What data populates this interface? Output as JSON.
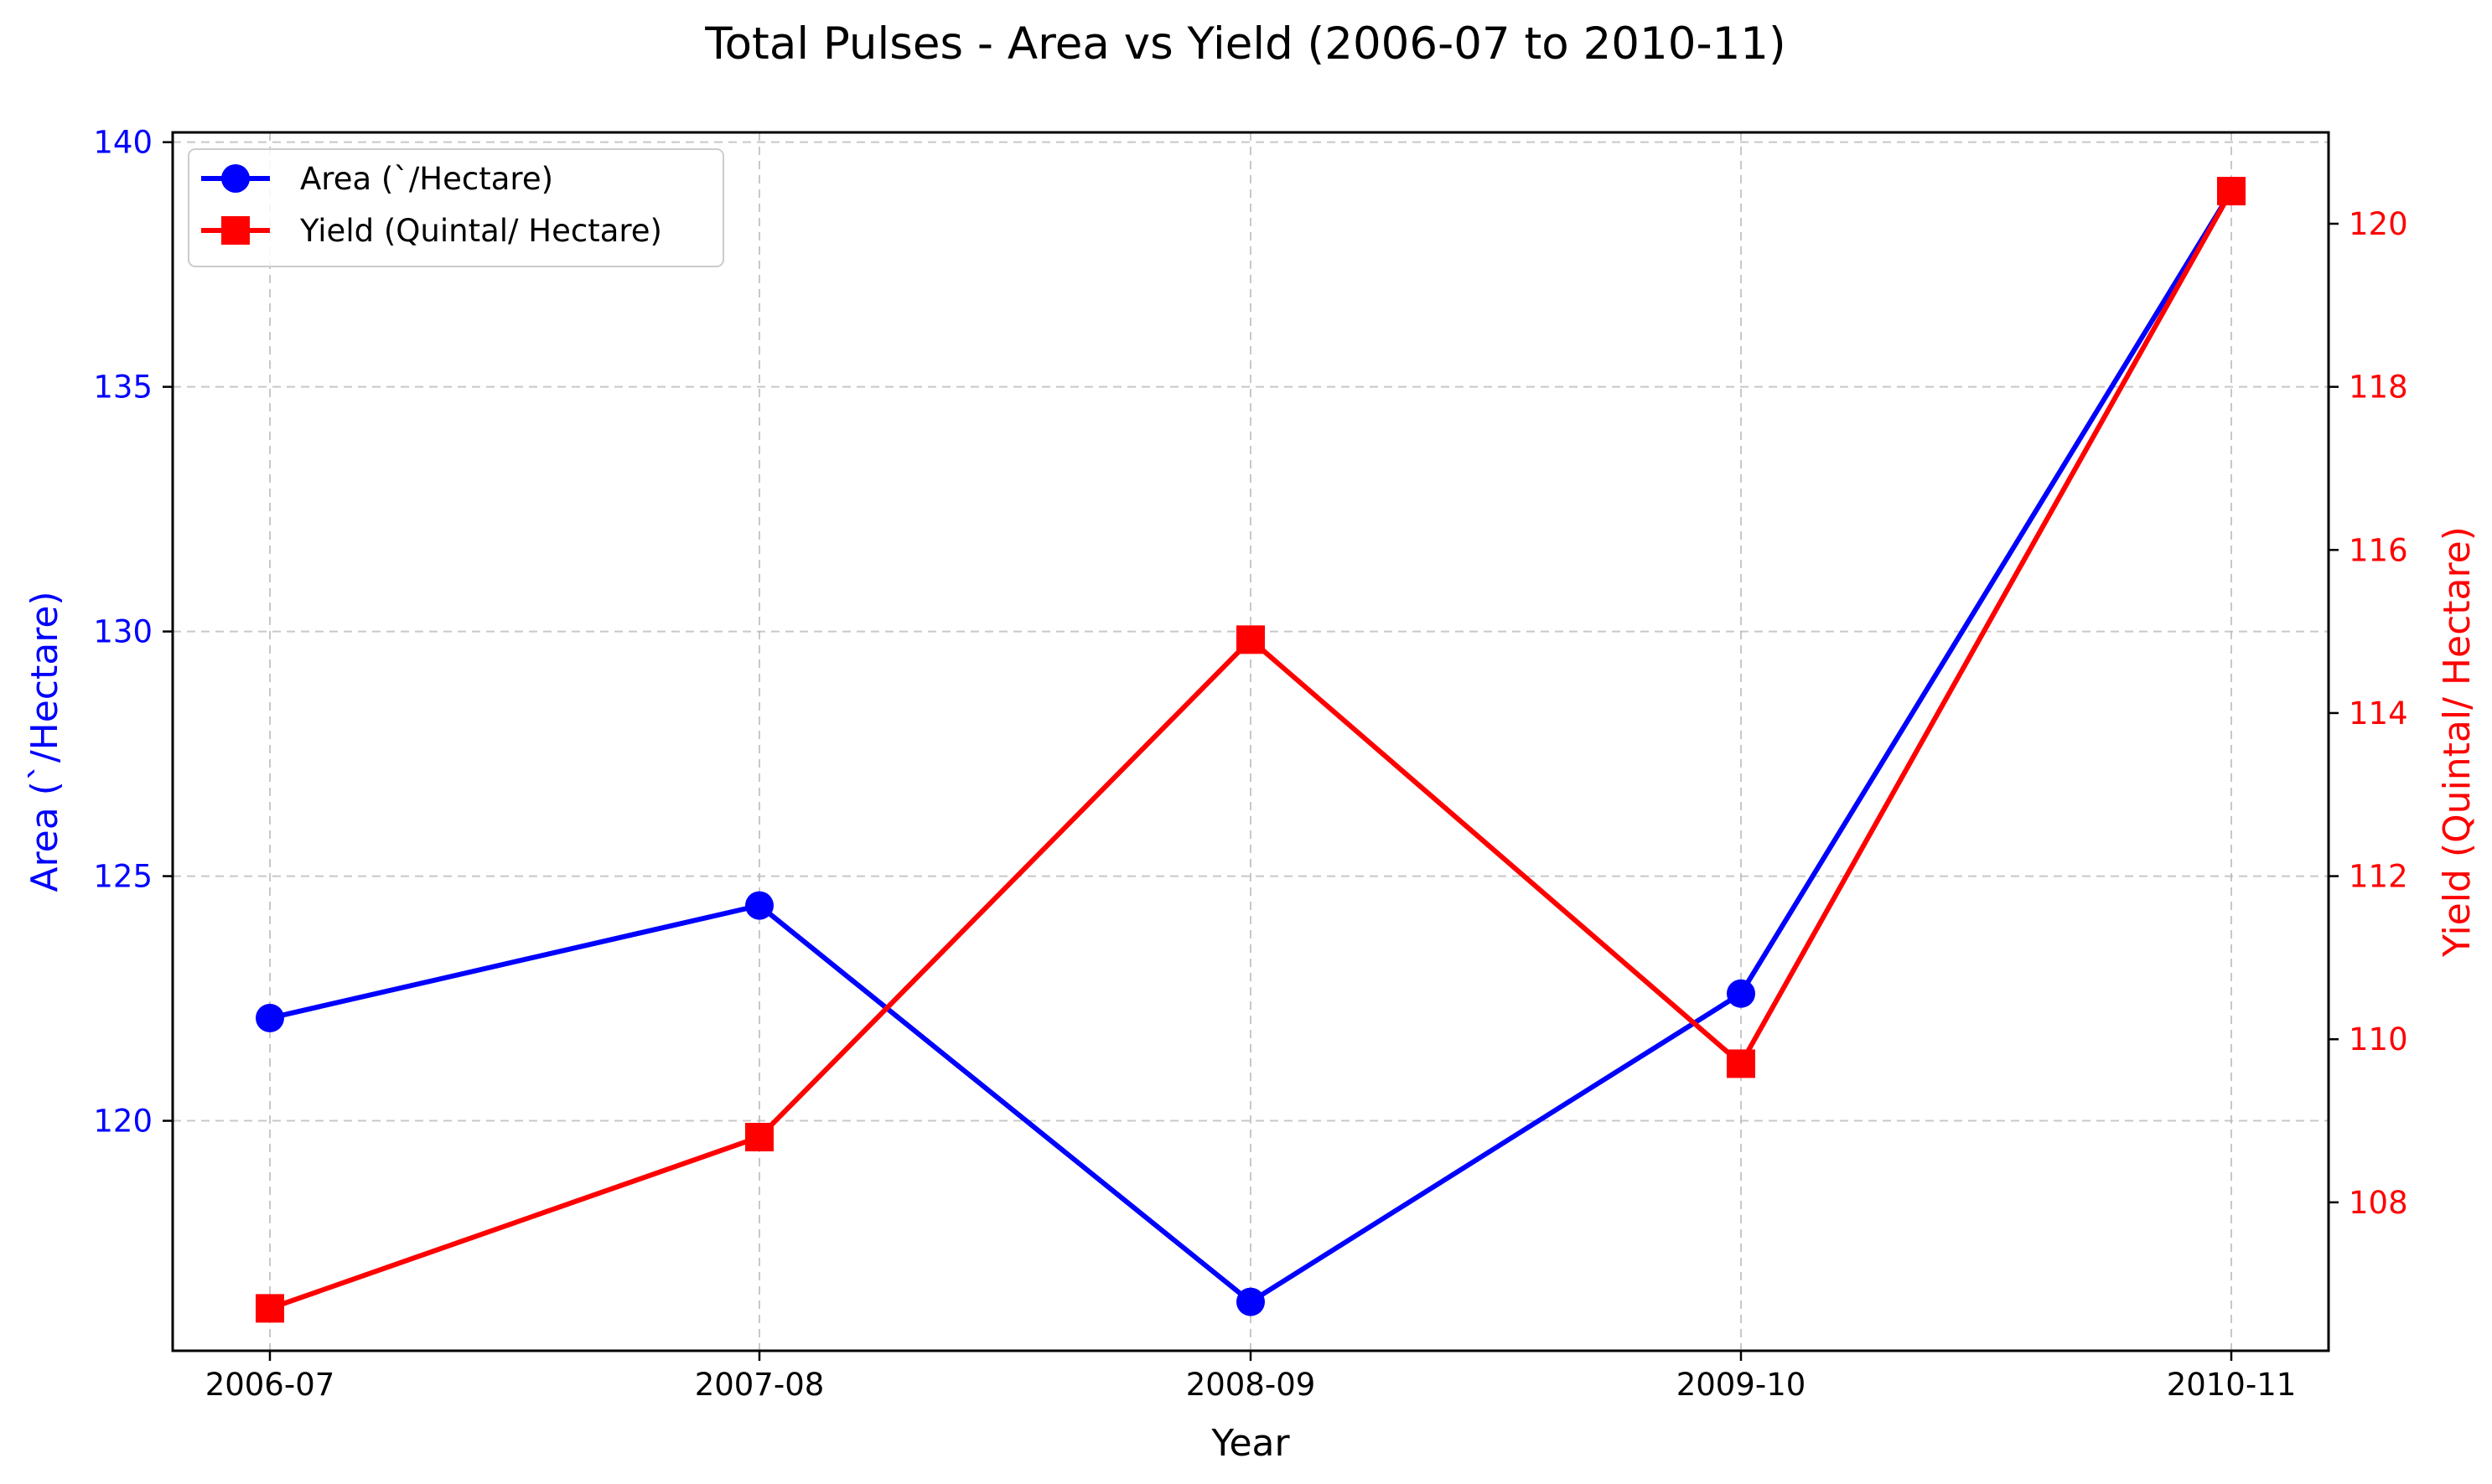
{
  "chart_data": {
    "type": "line",
    "title": "Total Pulses - Area vs Yield (2006-07 to 2010-11)",
    "xlabel": "Year",
    "ylabel_left": "Area (`/Hectare)",
    "ylabel_right": "Yield (Quintal/ Hectare)",
    "categories": [
      "2006-07",
      "2007-08",
      "2008-09",
      "2009-10",
      "2010-11"
    ],
    "series": [
      {
        "name": "Area (`/Hectare)",
        "axis": "left",
        "color": "#0000ff",
        "marker": "circle",
        "values": [
          122.1,
          124.4,
          116.3,
          122.6,
          139.0
        ]
      },
      {
        "name": "Yield (Quintal/ Hectare)",
        "axis": "right",
        "color": "#ff0000",
        "marker": "square",
        "values": [
          106.7,
          108.8,
          114.9,
          109.7,
          120.4
        ]
      }
    ],
    "y_left": {
      "range": [
        115.3,
        140.2
      ],
      "ticks": [
        120,
        125,
        130,
        135,
        140
      ],
      "tick_color": "#0000ff"
    },
    "y_right": {
      "range": [
        106.18,
        121.12
      ],
      "ticks": [
        108,
        110,
        112,
        114,
        116,
        118,
        120
      ],
      "tick_color": "#ff0000"
    },
    "grid": true,
    "legend_position": "top-left"
  }
}
